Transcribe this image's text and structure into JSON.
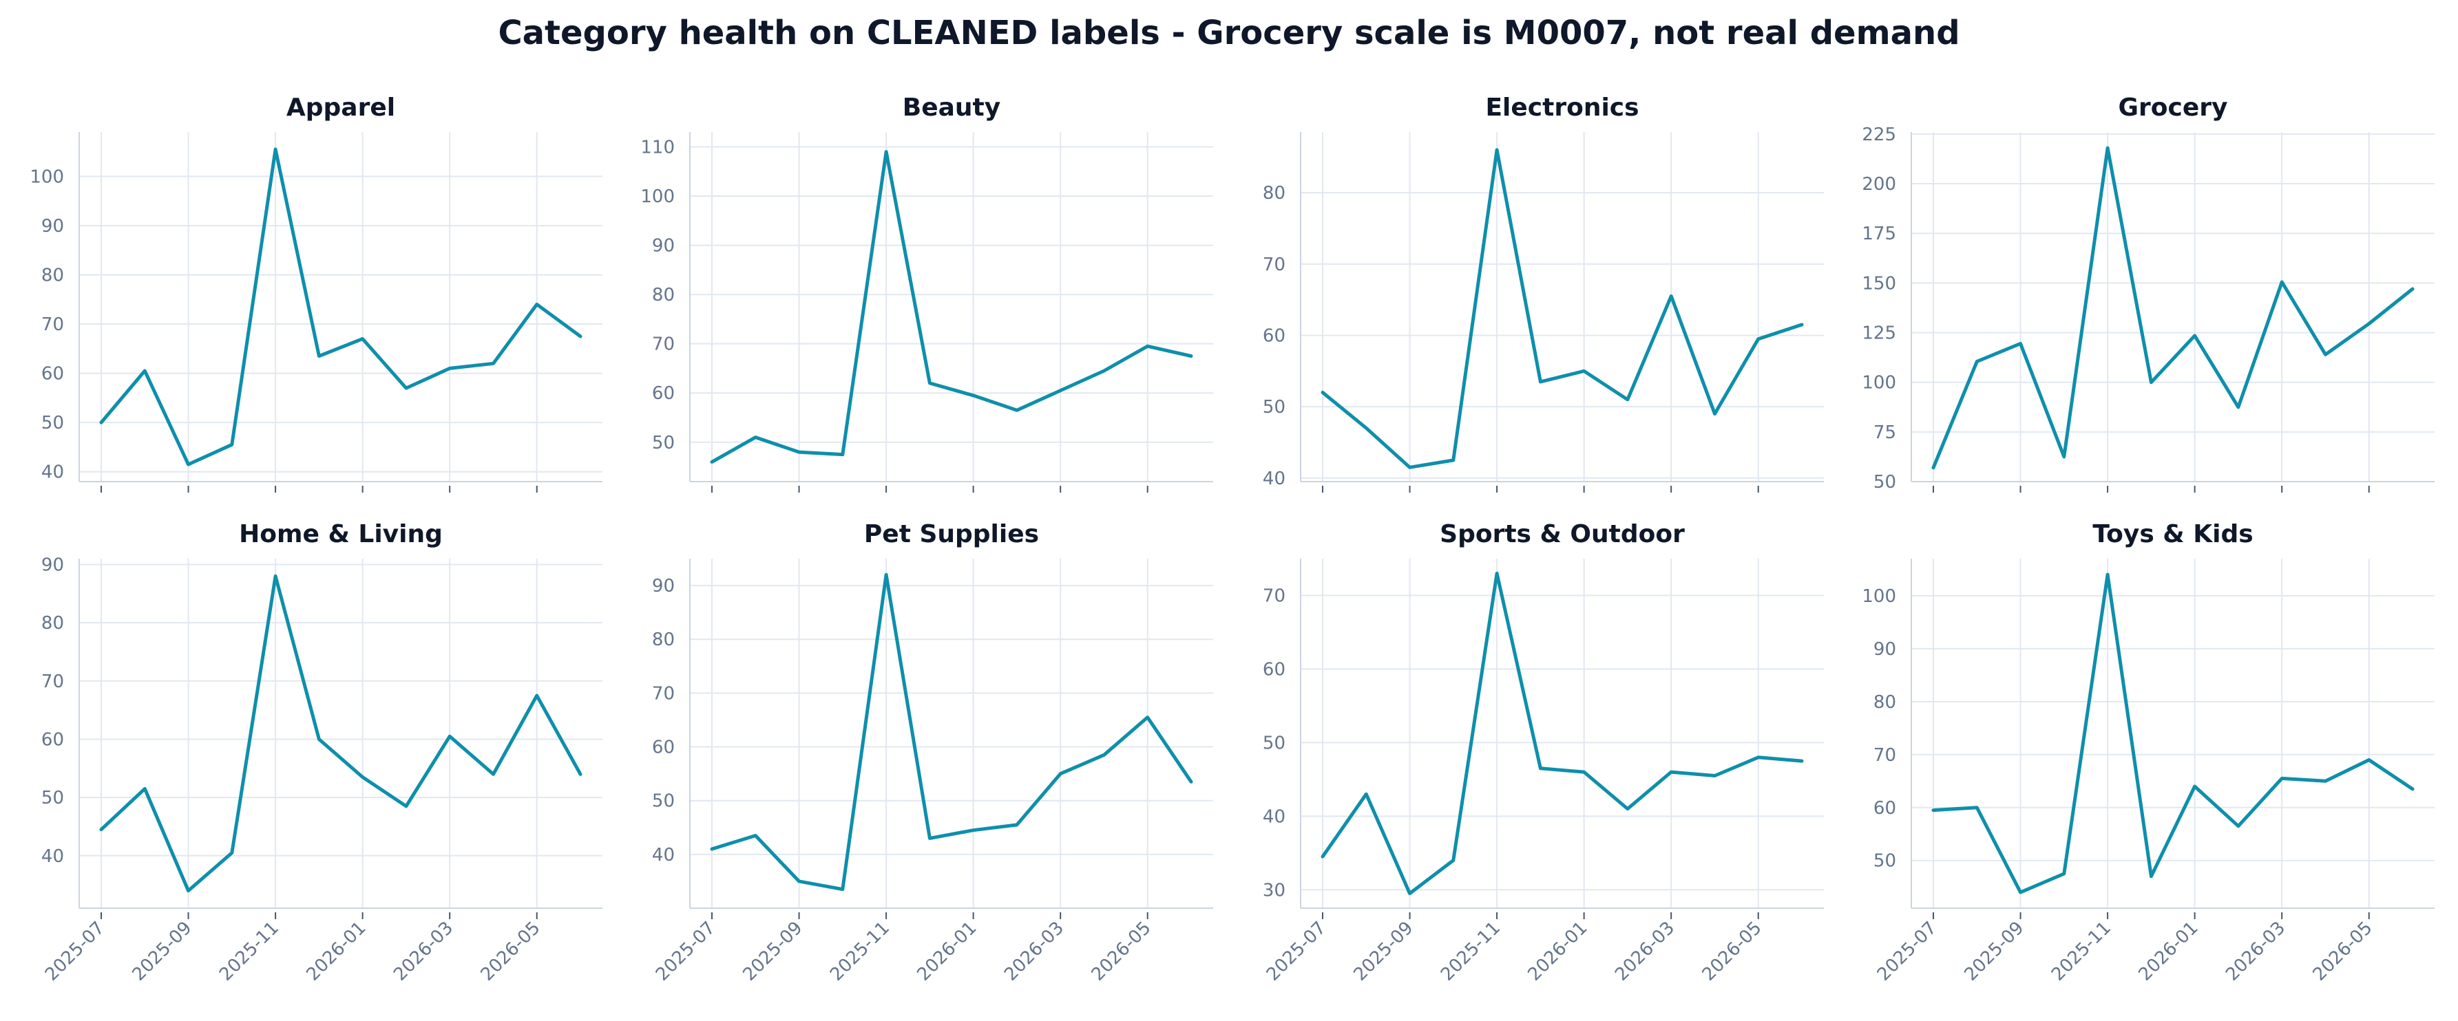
{
  "suptitle": "Category health on CLEANED labels - Grocery scale is M0007, not real demand",
  "colors": {
    "line": "#0e8fab",
    "grid": "#e2e8f0",
    "spine": "#cbd5e1",
    "tick_text": "#64748b",
    "title": "#0f172a"
  },
  "chart_data": [
    {
      "type": "line",
      "title": "Apparel",
      "x": [
        "2025-07",
        "2025-08",
        "2025-09",
        "2025-10",
        "2025-11",
        "2025-12",
        "2026-01",
        "2026-02",
        "2026-03",
        "2026-04",
        "2026-05",
        "2026-06"
      ],
      "y": [
        50,
        60.5,
        41.5,
        45.5,
        105.5,
        63.5,
        67,
        57,
        61,
        62,
        74,
        67.5
      ],
      "ylim": [
        38,
        109
      ],
      "yticks": [
        40,
        50,
        60,
        70,
        80,
        90,
        100
      ],
      "xticks": [
        "2025-07",
        "2025-09",
        "2025-11",
        "2026-01",
        "2026-03",
        "2026-05"
      ],
      "show_xtick_labels": false,
      "grid": true
    },
    {
      "type": "line",
      "title": "Beauty",
      "x": [
        "2025-07",
        "2025-08",
        "2025-09",
        "2025-10",
        "2025-11",
        "2025-12",
        "2026-01",
        "2026-02",
        "2026-03",
        "2026-04",
        "2026-05",
        "2026-06"
      ],
      "y": [
        46,
        51,
        48,
        47.5,
        109,
        62,
        59.5,
        56.5,
        60.5,
        64.5,
        69.5,
        67.5
      ],
      "ylim": [
        42,
        113
      ],
      "yticks": [
        50,
        60,
        70,
        80,
        90,
        100,
        110
      ],
      "xticks": [
        "2025-07",
        "2025-09",
        "2025-11",
        "2026-01",
        "2026-03",
        "2026-05"
      ],
      "show_xtick_labels": false,
      "grid": true
    },
    {
      "type": "line",
      "title": "Electronics",
      "x": [
        "2025-07",
        "2025-08",
        "2025-09",
        "2025-10",
        "2025-11",
        "2025-12",
        "2026-01",
        "2026-02",
        "2026-03",
        "2026-04",
        "2026-05",
        "2026-06"
      ],
      "y": [
        52,
        47,
        41.5,
        42.5,
        86,
        53.5,
        55,
        51,
        65.5,
        49,
        59.5,
        61.5
      ],
      "ylim": [
        39.5,
        88.5
      ],
      "yticks": [
        40,
        50,
        60,
        70,
        80
      ],
      "xticks": [
        "2025-07",
        "2025-09",
        "2025-11",
        "2026-01",
        "2026-03",
        "2026-05"
      ],
      "show_xtick_labels": false,
      "grid": true
    },
    {
      "type": "line",
      "title": "Grocery",
      "x": [
        "2025-07",
        "2025-08",
        "2025-09",
        "2025-10",
        "2025-11",
        "2025-12",
        "2026-01",
        "2026-02",
        "2026-03",
        "2026-04",
        "2026-05",
        "2026-06"
      ],
      "y": [
        57,
        110.5,
        119.5,
        62.5,
        218,
        100,
        123.5,
        87.5,
        150.5,
        114,
        129.5,
        147
      ],
      "ylim": [
        50,
        226
      ],
      "yticks": [
        50,
        75,
        100,
        125,
        150,
        175,
        200,
        225
      ],
      "xticks": [
        "2025-07",
        "2025-09",
        "2025-11",
        "2026-01",
        "2026-03",
        "2026-05"
      ],
      "show_xtick_labels": false,
      "grid": true
    },
    {
      "type": "line",
      "title": "Home & Living",
      "x": [
        "2025-07",
        "2025-08",
        "2025-09",
        "2025-10",
        "2025-11",
        "2025-12",
        "2026-01",
        "2026-02",
        "2026-03",
        "2026-04",
        "2026-05",
        "2026-06"
      ],
      "y": [
        44.5,
        51.5,
        34,
        40.5,
        88,
        60,
        53.5,
        48.5,
        60.5,
        54,
        67.5,
        54
      ],
      "ylim": [
        31,
        91
      ],
      "yticks": [
        40,
        50,
        60,
        70,
        80,
        90
      ],
      "xticks": [
        "2025-07",
        "2025-09",
        "2025-11",
        "2026-01",
        "2026-03",
        "2026-05"
      ],
      "show_xtick_labels": true,
      "grid": true
    },
    {
      "type": "line",
      "title": "Pet Supplies",
      "x": [
        "2025-07",
        "2025-08",
        "2025-09",
        "2025-10",
        "2025-11",
        "2025-12",
        "2026-01",
        "2026-02",
        "2026-03",
        "2026-04",
        "2026-05",
        "2026-06"
      ],
      "y": [
        41,
        43.5,
        35,
        33.5,
        92,
        43,
        44.5,
        45.5,
        55,
        58.5,
        65.5,
        53.5
      ],
      "ylim": [
        30,
        95
      ],
      "yticks": [
        40,
        50,
        60,
        70,
        80,
        90
      ],
      "xticks": [
        "2025-07",
        "2025-09",
        "2025-11",
        "2026-01",
        "2026-03",
        "2026-05"
      ],
      "show_xtick_labels": true,
      "grid": true
    },
    {
      "type": "line",
      "title": "Sports & Outdoor",
      "x": [
        "2025-07",
        "2025-08",
        "2025-09",
        "2025-10",
        "2025-11",
        "2025-12",
        "2026-01",
        "2026-02",
        "2026-03",
        "2026-04",
        "2026-05",
        "2026-06"
      ],
      "y": [
        34.5,
        43,
        29.5,
        34,
        73,
        46.5,
        46,
        41,
        46,
        45.5,
        48,
        47.5
      ],
      "ylim": [
        27.5,
        75
      ],
      "yticks": [
        30,
        40,
        50,
        60,
        70
      ],
      "xticks": [
        "2025-07",
        "2025-09",
        "2025-11",
        "2026-01",
        "2026-03",
        "2026-05"
      ],
      "show_xtick_labels": true,
      "grid": true
    },
    {
      "type": "line",
      "title": "Toys & Kids",
      "x": [
        "2025-07",
        "2025-08",
        "2025-09",
        "2025-10",
        "2025-11",
        "2025-12",
        "2026-01",
        "2026-02",
        "2026-03",
        "2026-04",
        "2026-05",
        "2026-06"
      ],
      "y": [
        59.5,
        60,
        44,
        47.5,
        104,
        47,
        64,
        56.5,
        65.5,
        65,
        69,
        63.5
      ],
      "ylim": [
        41,
        107
      ],
      "yticks": [
        50,
        60,
        70,
        80,
        90,
        100
      ],
      "xticks": [
        "2025-07",
        "2025-09",
        "2025-11",
        "2026-01",
        "2026-03",
        "2026-05"
      ],
      "show_xtick_labels": true,
      "grid": true
    }
  ]
}
